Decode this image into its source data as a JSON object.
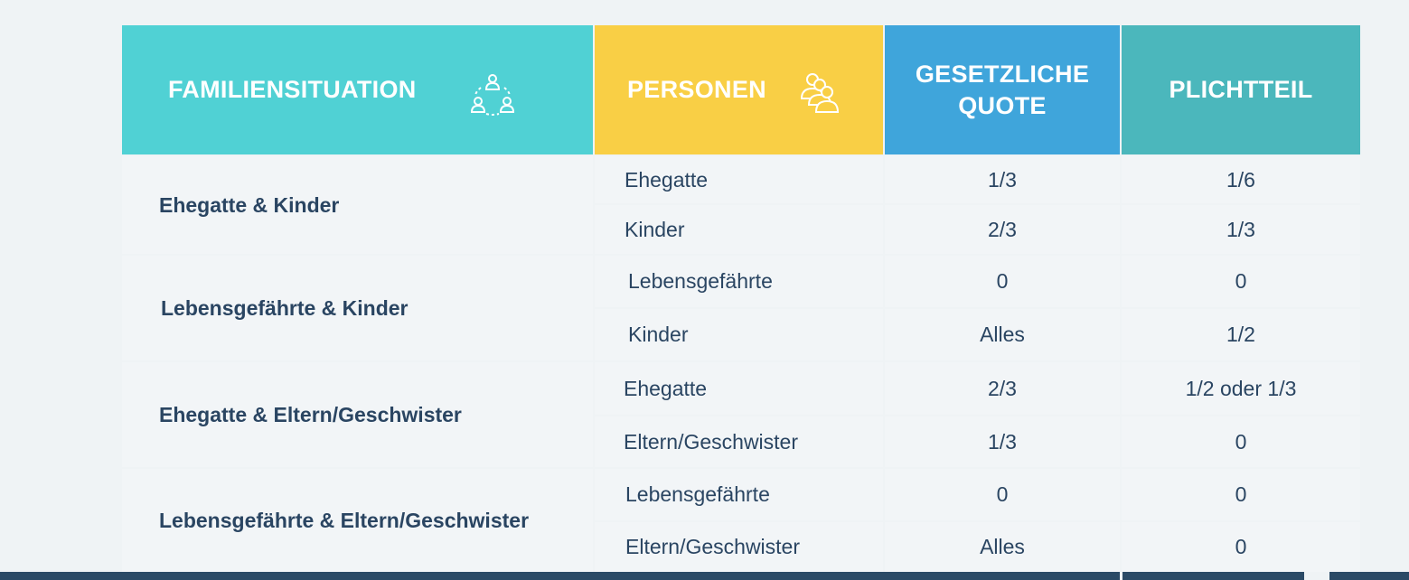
{
  "headers": {
    "familiensituation": "FAMILIENSITUATION",
    "personen": "PERSONEN",
    "quote_line1": "GESETZLICHE",
    "quote_line2": "QUOTE",
    "pflichtteil": "PLICHTTEIL"
  },
  "icons": {
    "familiensituation": "family-circle-icon",
    "personen": "people-group-icon"
  },
  "colors": {
    "familiensituation_header": "#50d1d4",
    "personen_header": "#f9cf45",
    "quote_header": "#3fa5db",
    "pflichtteil_header": "#4bb7bc",
    "text": "#2a4562"
  },
  "groups": [
    {
      "situation": "Ehegatte & Kinder",
      "rows": [
        {
          "person": "Ehegatte",
          "quote": "1/3",
          "pflichtteil": "1/6"
        },
        {
          "person": "Kinder",
          "quote": "2/3",
          "pflichtteil": "1/3"
        }
      ]
    },
    {
      "situation": "Lebensgefährte & Kinder",
      "rows": [
        {
          "person": "Lebensgefährte",
          "quote": "0",
          "pflichtteil": "0"
        },
        {
          "person": "Kinder",
          "quote": "Alles",
          "pflichtteil": "1/2"
        }
      ]
    },
    {
      "situation": "Ehegatte & Eltern/Geschwister",
      "rows": [
        {
          "person": "Ehegatte",
          "quote": "2/3",
          "pflichtteil": "1/2 oder 1/3"
        },
        {
          "person": "Eltern/Geschwister",
          "quote": "1/3",
          "pflichtteil": "0"
        }
      ]
    },
    {
      "situation": "Lebensgefährte & Eltern/Geschwister",
      "rows": [
        {
          "person": "Lebensgefährte",
          "quote": "0",
          "pflichtteil": "0"
        },
        {
          "person": "Eltern/Geschwister",
          "quote": "Alles",
          "pflichtteil": "0"
        }
      ]
    }
  ]
}
